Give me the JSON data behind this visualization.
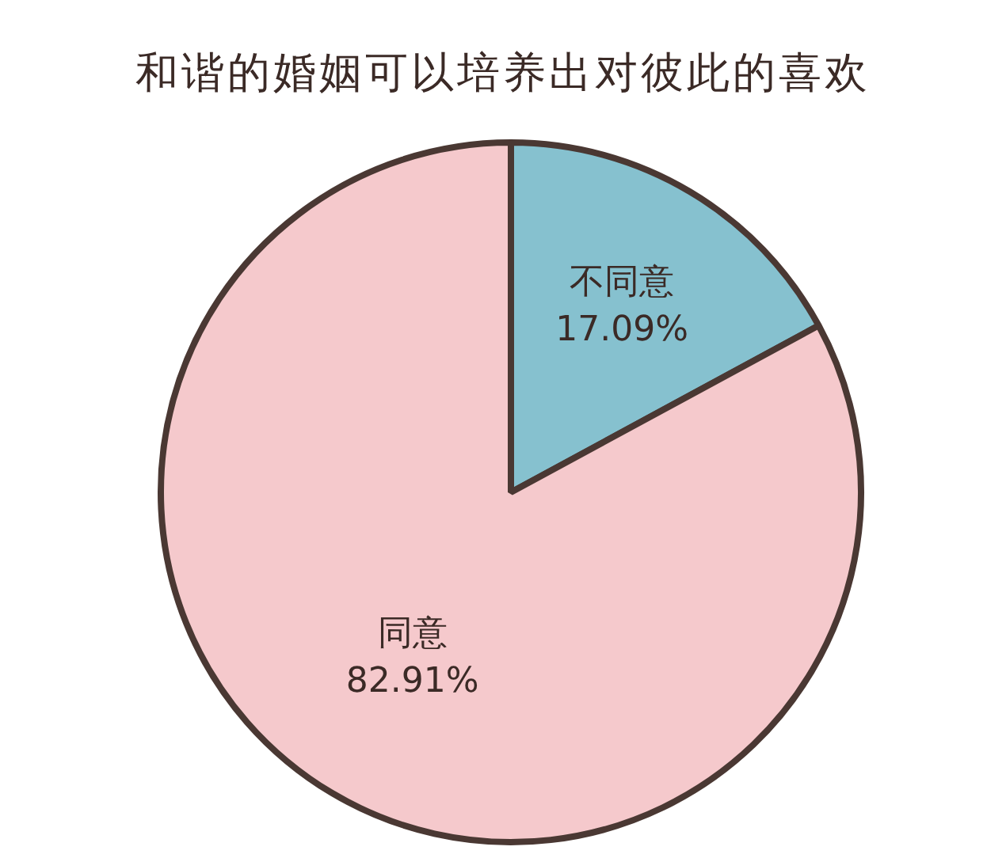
{
  "chart_data": {
    "type": "pie",
    "title": "和谐的婚姻可以培养出对彼此的喜欢",
    "categories": [
      "不同意",
      "同意"
    ],
    "values": [
      17.09,
      82.91
    ],
    "value_labels": [
      "17.09%",
      "82.91%"
    ],
    "colors": [
      "#86c1cf",
      "#f5c9cc"
    ],
    "legend": false
  }
}
